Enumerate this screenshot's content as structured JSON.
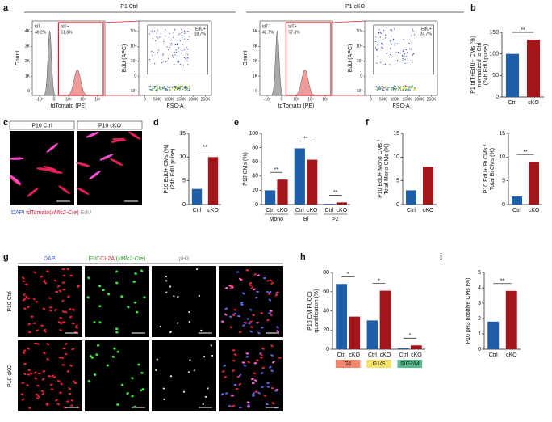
{
  "figure": {
    "panel_letters": [
      "a",
      "b",
      "c",
      "d",
      "e",
      "f",
      "g",
      "h",
      "i"
    ],
    "a": {
      "groups": [
        "P1 Ctrl",
        "P1 cKO"
      ],
      "hist_xlabel": "tdTomato (PE)",
      "hist_ylabel": "Count",
      "dot_xlabel": "FSC-A",
      "dot_ylabel": "EdU (APC)",
      "gate_neg": "tdT-",
      "gate_pos": "tdT+",
      "gate_edu": "EdU+",
      "ctrl": {
        "neg": "48.2%",
        "pos": "51.8%",
        "edu": "18.7%"
      },
      "cko": {
        "neg": "42.7%",
        "pos": "57.3%",
        "edu": "24.7%"
      },
      "hist_xticks": [
        "-10³",
        "0",
        "10³",
        "10⁴",
        "10⁵"
      ],
      "hist_yticks": [
        "0",
        "1K",
        "2K",
        "3K",
        "4K"
      ],
      "dot_xticks": [
        "0",
        "50K",
        "100K",
        "150K",
        "200K",
        "250K"
      ],
      "dot_yticks": [
        "-10³",
        "0",
        "10³",
        "10⁴",
        "10⁵"
      ]
    },
    "c": {
      "labels": [
        "P10 Ctrl",
        "P10 cKO"
      ],
      "legend": [
        {
          "text": "DAPI",
          "color": "#2f4fd0"
        },
        {
          "text": " tdTomato(",
          "color": "#d81e34"
        },
        {
          "text": "xMlc2-Cre",
          "color": "#d81e34",
          "italic": true
        },
        {
          "text": ")",
          "color": "#d81e34"
        },
        {
          "text": " EdU",
          "color": "#9a9a9a"
        }
      ]
    },
    "g": {
      "channels": [
        [
          {
            "text": "DAPI",
            "color": "#2f4fd0"
          }
        ],
        [
          {
            "text": "FUC",
            "color": "#2aa02a"
          },
          {
            "text": "CI-2A",
            "color": "#d81e34"
          },
          {
            "text": " (",
            "color": "#2aa02a"
          },
          {
            "text": "xMlc2-Cre",
            "color": "#2aa02a",
            "italic": true
          },
          {
            "text": ")",
            "color": "#2aa02a"
          }
        ],
        [
          {
            "text": "pH3",
            "color": "#9a9a9a"
          }
        ],
        []
      ],
      "rows": [
        "P10 Ctrl",
        "P10 cKO"
      ]
    }
  },
  "chart_data": [
    {
      "type": "bar",
      "ylabel": [
        "P1 tdT+EdU+ CMs (%)",
        "normalized to Ctrl",
        "(24h EdU pulse)"
      ],
      "categories": [
        "Ctrl",
        "cKO"
      ],
      "values": [
        100,
        133
      ],
      "colors": [
        "#1f5ea8",
        "#a3161a"
      ],
      "ylim": [
        0,
        150
      ],
      "yticks": [
        0,
        50,
        100,
        150
      ],
      "annotation": "**"
    },
    {
      "type": "bar",
      "ylabel": [
        "P10 EdU+ CMs (%)",
        "(24h EdU pulse)"
      ],
      "categories": [
        "Ctrl",
        "cKO"
      ],
      "values": [
        3.3,
        10
      ],
      "colors": [
        "#1f5ea8",
        "#a3161a"
      ],
      "ylim": [
        0,
        15
      ],
      "yticks": [
        0,
        5,
        10,
        15
      ],
      "annotation": "**"
    },
    {
      "type": "grouped_bar",
      "ylabel": [
        "P10 CMs (%)"
      ],
      "categories": [
        "Mono",
        "Bi",
        ">2"
      ],
      "series": [
        {
          "name": "Ctrl",
          "color": "#1f5ea8",
          "values": [
            20,
            79,
            1
          ]
        },
        {
          "name": "cKO",
          "color": "#a3161a",
          "values": [
            35,
            63,
            3
          ]
        }
      ],
      "ylim": [
        0,
        100
      ],
      "yticks": [
        0,
        20,
        40,
        60,
        80,
        100
      ],
      "annotations": [
        "**",
        "**",
        "**"
      ]
    },
    {
      "type": "bar",
      "ylabel": [
        "P10 EdU+ Mono CMs /",
        "Total Mono CMs (%)"
      ],
      "categories": [
        "Ctrl",
        "cKO"
      ],
      "values": [
        3,
        8
      ],
      "colors": [
        "#1f5ea8",
        "#a3161a"
      ],
      "ylim": [
        0,
        15
      ],
      "yticks": [
        0,
        5,
        10,
        15
      ]
    },
    {
      "type": "bar",
      "ylabel": [
        "P10 EdU+ Bi CMs /",
        "Total Bi CMs (%)"
      ],
      "categories": [
        "Ctrl",
        "cKO"
      ],
      "values": [
        1.7,
        9
      ],
      "colors": [
        "#1f5ea8",
        "#a3161a"
      ],
      "ylim": [
        0,
        15
      ],
      "yticks": [
        0,
        5,
        10,
        15
      ],
      "annotation": "**"
    },
    {
      "type": "grouped_bar",
      "ylabel": [
        "P10 CM FUCCI",
        "quantification (%)"
      ],
      "categories": [
        "G1",
        "G1/S",
        "S/G2/M"
      ],
      "group_colors": [
        "#f4866a",
        "#f6e46a",
        "#56bb8a"
      ],
      "series": [
        {
          "name": "Ctrl",
          "color": "#1f5ea8",
          "values": [
            68,
            30,
            1
          ]
        },
        {
          "name": "cKO",
          "color": "#a3161a",
          "values": [
            34,
            61,
            4
          ]
        }
      ],
      "ylim": [
        0,
        80
      ],
      "yticks": [
        0,
        20,
        40,
        60,
        80
      ],
      "annotations": [
        "*",
        "*",
        "*"
      ]
    },
    {
      "type": "bar",
      "ylabel": [
        "P10 pH3 positive CMs (%)"
      ],
      "categories": [
        "Ctrl",
        "cKO"
      ],
      "values": [
        1.8,
        3.8
      ],
      "colors": [
        "#1f5ea8",
        "#a3161a"
      ],
      "ylim": [
        0,
        5
      ],
      "yticks": [
        0,
        1,
        2,
        3,
        4,
        5
      ],
      "annotation": "**"
    }
  ]
}
